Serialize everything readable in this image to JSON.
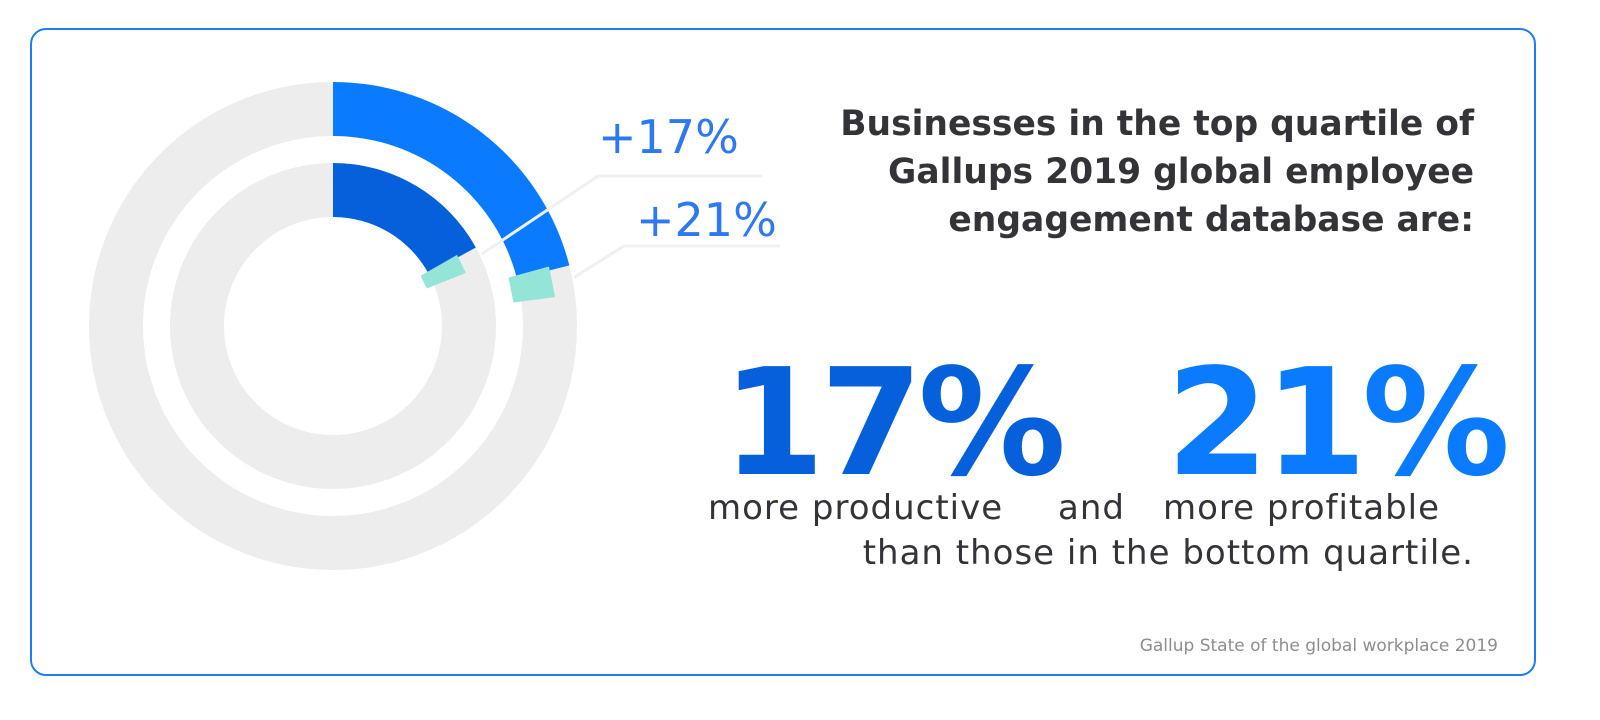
{
  "colors": {
    "track": "#ededed",
    "outer_arc": "#0a7bff",
    "inner_arc": "#0660dc",
    "marker": "#95e4d8",
    "label": "#2e78f0",
    "text_dark": "#333338",
    "source": "#8d8d92",
    "border": "#1f7cf2"
  },
  "chart_data": {
    "type": "radial_bar",
    "series": [
      {
        "ring": "outer",
        "label": "+21%",
        "value": 21,
        "color": "#0a7bff"
      },
      {
        "ring": "inner",
        "label": "+17%",
        "value": 17,
        "color": "#0660dc"
      }
    ]
  },
  "headline": [
    "Businesses in the top quartile of",
    "Gallups 2019 global employee",
    "engagement database are:"
  ],
  "stats": {
    "first_value": "17%",
    "first_desc": "more productive",
    "connector": "and",
    "second_value": "21%",
    "second_desc": "more profitable"
  },
  "conclusion": "than those in the bottom quartile.",
  "source": "Gallup State of the global workplace 2019"
}
